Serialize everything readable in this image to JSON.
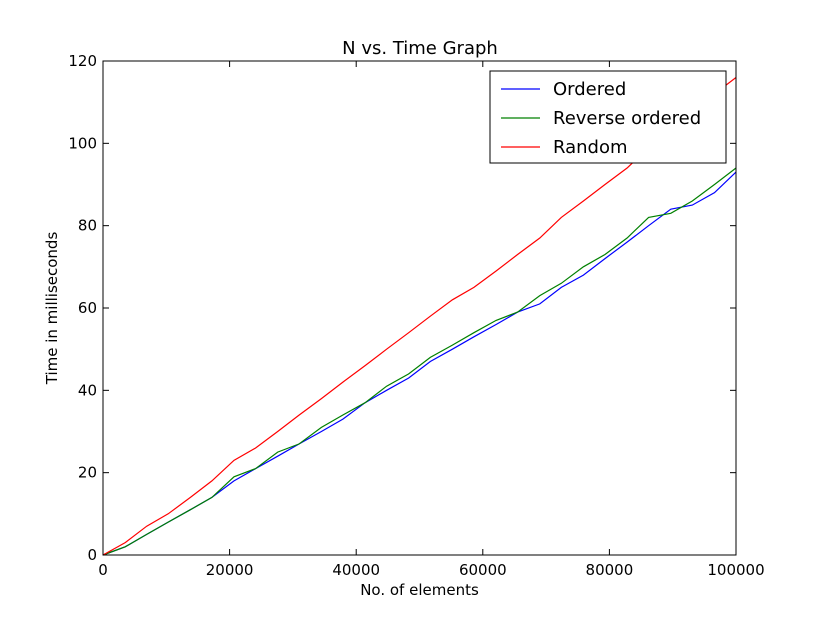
{
  "chart_data": {
    "type": "line",
    "title": "N vs. Time Graph",
    "xlabel": "No. of elements",
    "ylabel": "Time in milliseconds",
    "xlim": [
      0,
      100000
    ],
    "ylim": [
      0,
      120
    ],
    "xticks": [
      "0",
      "20000",
      "40000",
      "60000",
      "80000",
      "100000"
    ],
    "yticks": [
      "0",
      "20",
      "40",
      "60",
      "80",
      "100",
      "120"
    ],
    "grid": false,
    "legend_position": "top-right",
    "series": [
      {
        "name": "Ordered",
        "color": "#0000ff",
        "points": [
          [
            0,
            0
          ],
          [
            3500,
            2
          ],
          [
            6900,
            5
          ],
          [
            10300,
            8
          ],
          [
            13800,
            11
          ],
          [
            17200,
            14
          ],
          [
            20700,
            18
          ],
          [
            24100,
            21
          ],
          [
            27600,
            24
          ],
          [
            31000,
            27
          ],
          [
            34500,
            30
          ],
          [
            37900,
            33
          ],
          [
            41400,
            37
          ],
          [
            44800,
            40
          ],
          [
            48300,
            43
          ],
          [
            51700,
            47
          ],
          [
            55200,
            50
          ],
          [
            58600,
            53
          ],
          [
            62100,
            56
          ],
          [
            65500,
            59
          ],
          [
            69000,
            61
          ],
          [
            72400,
            65
          ],
          [
            75900,
            68
          ],
          [
            79300,
            72
          ],
          [
            82800,
            76
          ],
          [
            86200,
            80
          ],
          [
            89700,
            84
          ],
          [
            93100,
            85
          ],
          [
            96600,
            88
          ],
          [
            100000,
            93
          ]
        ]
      },
      {
        "name": "Reverse ordered",
        "color": "#008000",
        "points": [
          [
            0,
            0
          ],
          [
            3500,
            2
          ],
          [
            6900,
            5
          ],
          [
            10300,
            8
          ],
          [
            13800,
            11
          ],
          [
            17200,
            14
          ],
          [
            20700,
            19
          ],
          [
            24100,
            21
          ],
          [
            27600,
            25
          ],
          [
            31000,
            27
          ],
          [
            34500,
            31
          ],
          [
            37900,
            34
          ],
          [
            41400,
            37
          ],
          [
            44800,
            41
          ],
          [
            48300,
            44
          ],
          [
            51700,
            48
          ],
          [
            55200,
            51
          ],
          [
            58600,
            54
          ],
          [
            62100,
            57
          ],
          [
            65500,
            59
          ],
          [
            69000,
            63
          ],
          [
            72400,
            66
          ],
          [
            75900,
            70
          ],
          [
            79300,
            73
          ],
          [
            82800,
            77
          ],
          [
            86200,
            82
          ],
          [
            89700,
            83
          ],
          [
            93100,
            86
          ],
          [
            96600,
            90
          ],
          [
            100000,
            94
          ]
        ]
      },
      {
        "name": "Random",
        "color": "#ff0000",
        "points": [
          [
            0,
            0
          ],
          [
            3500,
            3
          ],
          [
            6900,
            7
          ],
          [
            10300,
            10
          ],
          [
            13800,
            14
          ],
          [
            17200,
            18
          ],
          [
            20700,
            23
          ],
          [
            24100,
            26
          ],
          [
            27600,
            30
          ],
          [
            31000,
            34
          ],
          [
            34500,
            38
          ],
          [
            37900,
            42
          ],
          [
            41400,
            46
          ],
          [
            44800,
            50
          ],
          [
            48300,
            54
          ],
          [
            51700,
            58
          ],
          [
            55200,
            62
          ],
          [
            58600,
            65
          ],
          [
            62100,
            69
          ],
          [
            65500,
            73
          ],
          [
            69000,
            77
          ],
          [
            72400,
            82
          ],
          [
            75900,
            86
          ],
          [
            79300,
            90
          ],
          [
            82800,
            94
          ],
          [
            86200,
            99
          ],
          [
            89700,
            103
          ],
          [
            93100,
            107
          ],
          [
            96600,
            112
          ],
          [
            100000,
            116
          ]
        ]
      }
    ]
  }
}
